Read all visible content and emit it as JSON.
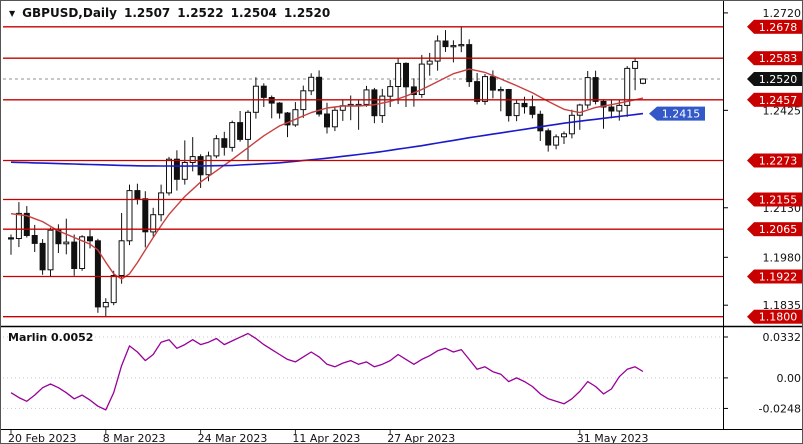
{
  "window": {
    "header": {
      "collapse_icon": "▼",
      "symbol": "GBPUSD,Daily",
      "open": "1.2507",
      "high": "1.2522",
      "low": "1.2504",
      "close": "1.2520"
    },
    "indicator_header": "Marlin 0.0052"
  },
  "colors": {
    "background": "#ffffff",
    "level_line": "#c80000",
    "candle_up_fill": "#ffffff",
    "candle_down_fill": "#111111",
    "candle_outline": "#111111",
    "ma_fast": "#c84040",
    "ma_slow": "#1a1acc",
    "marlin_line": "#990099",
    "label_level_bg": "#c80000",
    "label_price_bg": "#111111",
    "label_ma_bg": "#3358c8",
    "bid_line": "#909090",
    "axis_text": "#111111"
  },
  "chart_data": {
    "type": "candlestick",
    "title": "GBPUSD,Daily",
    "symbol": "GBPUSD",
    "timeframe": "Daily",
    "current_bar": {
      "open": 1.2507,
      "high": 1.2522,
      "low": 1.2504,
      "close": 1.252
    },
    "price_range": {
      "min": 1.1775,
      "max": 1.275
    },
    "levels": [
      1.2678,
      1.2583,
      1.2457,
      1.2273,
      1.2155,
      1.2065,
      1.1922,
      1.18
    ],
    "current_price": 1.252,
    "ma_callout": {
      "text": "1.2415",
      "value": 1.2415
    },
    "axis_labels": [
      {
        "text": "1.2720",
        "value": 1.272,
        "style": "plain"
      },
      {
        "text": "1.2678",
        "value": 1.2678,
        "style": "level"
      },
      {
        "text": "1.2583",
        "value": 1.2583,
        "style": "level"
      },
      {
        "text": "1.2520",
        "value": 1.252,
        "style": "price"
      },
      {
        "text": "1.2457",
        "value": 1.2457,
        "style": "level"
      },
      {
        "text": "1.2425",
        "value": 1.2425,
        "style": "plain"
      },
      {
        "text": "1.2273",
        "value": 1.2273,
        "style": "level"
      },
      {
        "text": "1.2155",
        "value": 1.2155,
        "style": "level"
      },
      {
        "text": "1.2130",
        "value": 1.213,
        "style": "plain"
      },
      {
        "text": "1.2065",
        "value": 1.2065,
        "style": "level"
      },
      {
        "text": "1.1980",
        "value": 1.198,
        "style": "plain"
      },
      {
        "text": "1.1922",
        "value": 1.1922,
        "style": "level"
      },
      {
        "text": "1.1835",
        "value": 1.1835,
        "style": "plain"
      },
      {
        "text": "1.1800",
        "value": 1.18,
        "style": "level"
      }
    ],
    "time_axis": [
      {
        "text": "20 Feb 2023",
        "index": 0
      },
      {
        "text": "8 Mar 2023",
        "index": 12
      },
      {
        "text": "24 Mar 2023",
        "index": 24
      },
      {
        "text": "11 Apr 2023",
        "index": 36
      },
      {
        "text": "27 Apr 2023",
        "index": 48
      },
      {
        "text": "31 May 2023",
        "index": 72
      }
    ],
    "candles": [
      [
        1.2039,
        1.2049,
        1.1988,
        1.2037
      ],
      [
        1.2037,
        1.2147,
        1.2011,
        1.2113
      ],
      [
        1.2113,
        1.2135,
        1.204,
        1.2046
      ],
      [
        1.2046,
        1.2078,
        1.1996,
        1.2022
      ],
      [
        1.2022,
        1.2035,
        1.1927,
        1.1942
      ],
      [
        1.1942,
        1.207,
        1.1923,
        1.2062
      ],
      [
        1.2062,
        1.208,
        1.1993,
        1.2021
      ],
      [
        1.2021,
        1.2097,
        1.1989,
        1.2026
      ],
      [
        1.2026,
        1.2049,
        1.1924,
        1.1946
      ],
      [
        1.1946,
        1.2047,
        1.1939,
        1.2042
      ],
      [
        1.2042,
        1.2063,
        1.2007,
        1.203
      ],
      [
        1.203,
        1.2036,
        1.1812,
        1.183
      ],
      [
        1.183,
        1.1856,
        1.1802,
        1.1843
      ],
      [
        1.1843,
        1.1939,
        1.1835,
        1.1925
      ],
      [
        1.1925,
        1.2114,
        1.19,
        1.203
      ],
      [
        1.203,
        1.22,
        1.2017,
        1.2182
      ],
      [
        1.2182,
        1.2203,
        1.214,
        1.2157
      ],
      [
        1.2157,
        1.218,
        1.201,
        1.2057
      ],
      [
        1.2057,
        1.213,
        1.2043,
        1.2109
      ],
      [
        1.2109,
        1.22,
        1.2089,
        1.2175
      ],
      [
        1.2175,
        1.2284,
        1.2167,
        1.2277
      ],
      [
        1.2277,
        1.2304,
        1.2182,
        1.2216
      ],
      [
        1.2216,
        1.2334,
        1.22,
        1.2267
      ],
      [
        1.2267,
        1.2344,
        1.224,
        1.2285
      ],
      [
        1.2285,
        1.2292,
        1.219,
        1.223
      ],
      [
        1.223,
        1.23,
        1.221,
        1.2287
      ],
      [
        1.2287,
        1.235,
        1.228,
        1.2339
      ],
      [
        1.2339,
        1.236,
        1.2288,
        1.2313
      ],
      [
        1.2313,
        1.2394,
        1.23,
        1.2388
      ],
      [
        1.2388,
        1.2423,
        1.233,
        1.2337
      ],
      [
        1.2337,
        1.2425,
        1.2275,
        1.2419
      ],
      [
        1.2419,
        1.2525,
        1.24,
        1.2498
      ],
      [
        1.2498,
        1.2507,
        1.2435,
        1.2464
      ],
      [
        1.2464,
        1.247,
        1.2401,
        1.2447
      ],
      [
        1.2447,
        1.245,
        1.24,
        1.2417
      ],
      [
        1.2417,
        1.242,
        1.2344,
        1.2381
      ],
      [
        1.2381,
        1.245,
        1.2375,
        1.2427
      ],
      [
        1.2427,
        1.25,
        1.2402,
        1.2484
      ],
      [
        1.2484,
        1.2537,
        1.2471,
        1.2525
      ],
      [
        1.2525,
        1.2546,
        1.2406,
        1.2414
      ],
      [
        1.2414,
        1.2448,
        1.2355,
        1.2375
      ],
      [
        1.2375,
        1.2436,
        1.2362,
        1.2425
      ],
      [
        1.2425,
        1.2455,
        1.2393,
        1.2439
      ],
      [
        1.2439,
        1.247,
        1.2395,
        1.2443
      ],
      [
        1.2443,
        1.2455,
        1.2366,
        1.2443
      ],
      [
        1.2443,
        1.2499,
        1.2436,
        1.2487
      ],
      [
        1.2487,
        1.2493,
        1.2386,
        1.2409
      ],
      [
        1.2409,
        1.249,
        1.2387,
        1.2468
      ],
      [
        1.2468,
        1.2517,
        1.2435,
        1.2497
      ],
      [
        1.2497,
        1.2584,
        1.2444,
        1.2567
      ],
      [
        1.2567,
        1.257,
        1.2435,
        1.2496
      ],
      [
        1.2496,
        1.2522,
        1.2436,
        1.2473
      ],
      [
        1.2473,
        1.2593,
        1.2463,
        1.2565
      ],
      [
        1.2565,
        1.2599,
        1.253,
        1.2574
      ],
      [
        1.2574,
        1.2652,
        1.2545,
        1.2635
      ],
      [
        1.2635,
        1.2668,
        1.2602,
        1.2618
      ],
      [
        1.2618,
        1.2637,
        1.257,
        1.2621
      ],
      [
        1.2621,
        1.2679,
        1.2601,
        1.2624
      ],
      [
        1.2624,
        1.264,
        1.2496,
        1.2512
      ],
      [
        1.2512,
        1.2538,
        1.2443,
        1.2452
      ],
      [
        1.2452,
        1.2535,
        1.2442,
        1.2527
      ],
      [
        1.2527,
        1.2546,
        1.2461,
        1.2486
      ],
      [
        1.2486,
        1.2497,
        1.2422,
        1.2488
      ],
      [
        1.2488,
        1.249,
        1.2391,
        1.2409
      ],
      [
        1.2409,
        1.2458,
        1.2392,
        1.2446
      ],
      [
        1.2446,
        1.2466,
        1.2415,
        1.2436
      ],
      [
        1.2436,
        1.247,
        1.2401,
        1.2413
      ],
      [
        1.2413,
        1.2424,
        1.2332,
        1.2363
      ],
      [
        1.2363,
        1.237,
        1.23,
        1.232
      ],
      [
        1.232,
        1.2352,
        1.2307,
        1.2345
      ],
      [
        1.2345,
        1.2361,
        1.2323,
        1.2354
      ],
      [
        1.2354,
        1.2427,
        1.234,
        1.241
      ],
      [
        1.241,
        1.2445,
        1.2366,
        1.2441
      ],
      [
        1.2441,
        1.2544,
        1.243,
        1.2524
      ],
      [
        1.2524,
        1.2545,
        1.2443,
        1.2452
      ],
      [
        1.2452,
        1.2458,
        1.2369,
        1.2435
      ],
      [
        1.2435,
        1.2457,
        1.2401,
        1.2423
      ],
      [
        1.2423,
        1.2455,
        1.2394,
        1.244
      ],
      [
        1.244,
        1.2559,
        1.2405,
        1.2552
      ],
      [
        1.2552,
        1.2582,
        1.2486,
        1.2573
      ],
      [
        1.2507,
        1.2522,
        1.2504,
        1.252
      ]
    ],
    "ma_slow_points": [
      [
        0,
        1.2268
      ],
      [
        10,
        1.2261
      ],
      [
        16,
        1.2257
      ],
      [
        22,
        1.2256
      ],
      [
        28,
        1.2258
      ],
      [
        34,
        1.2266
      ],
      [
        40,
        1.228
      ],
      [
        46,
        1.2297
      ],
      [
        52,
        1.2318
      ],
      [
        58,
        1.2342
      ],
      [
        64,
        1.2364
      ],
      [
        70,
        1.2386
      ],
      [
        75,
        1.2401
      ],
      [
        80,
        1.2415
      ]
    ],
    "ma_fast_points": [
      [
        0,
        1.2112
      ],
      [
        2,
        1.2106
      ],
      [
        4,
        1.2088
      ],
      [
        6,
        1.206
      ],
      [
        8,
        1.204
      ],
      [
        10,
        1.202
      ],
      [
        11,
        1.2002
      ],
      [
        12,
        1.1965
      ],
      [
        13,
        1.193
      ],
      [
        14,
        1.1914
      ],
      [
        15,
        1.193
      ],
      [
        16,
        1.1964
      ],
      [
        17,
        1.2002
      ],
      [
        18,
        1.204
      ],
      [
        19,
        1.2076
      ],
      [
        20,
        1.211
      ],
      [
        22,
        1.2164
      ],
      [
        24,
        1.2208
      ],
      [
        26,
        1.2242
      ],
      [
        28,
        1.2276
      ],
      [
        30,
        1.2312
      ],
      [
        32,
        1.2348
      ],
      [
        34,
        1.2378
      ],
      [
        36,
        1.2398
      ],
      [
        38,
        1.2418
      ],
      [
        40,
        1.2432
      ],
      [
        42,
        1.2438
      ],
      [
        44,
        1.2438
      ],
      [
        46,
        1.2442
      ],
      [
        48,
        1.2452
      ],
      [
        50,
        1.2468
      ],
      [
        52,
        1.2488
      ],
      [
        54,
        1.2512
      ],
      [
        56,
        1.2536
      ],
      [
        58,
        1.255
      ],
      [
        60,
        1.254
      ],
      [
        62,
        1.252
      ],
      [
        64,
        1.25
      ],
      [
        66,
        1.2478
      ],
      [
        68,
        1.2452
      ],
      [
        70,
        1.2428
      ],
      [
        72,
        1.2418
      ],
      [
        74,
        1.2434
      ],
      [
        76,
        1.2442
      ],
      [
        78,
        1.2452
      ],
      [
        80,
        1.2462
      ]
    ],
    "indicator": {
      "name": "Marlin",
      "value": 0.0052,
      "range": {
        "min": -0.0415,
        "max": 0.0405
      },
      "axis_labels": [
        {
          "text": "0.0332",
          "value": 0.0332
        },
        {
          "text": "0.00",
          "value": 0.0
        },
        {
          "text": "-0.0248",
          "value": -0.0248
        }
      ],
      "values": [
        -0.012,
        -0.016,
        -0.019,
        -0.014,
        -0.008,
        -0.005,
        -0.008,
        -0.012,
        -0.017,
        -0.014,
        -0.018,
        -0.023,
        -0.026,
        -0.012,
        0.01,
        0.026,
        0.021,
        0.014,
        0.019,
        0.029,
        0.031,
        0.024,
        0.027,
        0.031,
        0.027,
        0.029,
        0.032,
        0.027,
        0.03,
        0.033,
        0.036,
        0.032,
        0.027,
        0.023,
        0.019,
        0.015,
        0.013,
        0.017,
        0.021,
        0.017,
        0.011,
        0.009,
        0.012,
        0.014,
        0.011,
        0.013,
        0.009,
        0.011,
        0.014,
        0.019,
        0.015,
        0.011,
        0.015,
        0.018,
        0.022,
        0.024,
        0.021,
        0.023,
        0.015,
        0.007,
        0.009,
        0.005,
        0.003,
        -0.003,
        0.0,
        -0.003,
        -0.007,
        -0.013,
        -0.017,
        -0.019,
        -0.021,
        -0.017,
        -0.011,
        -0.003,
        -0.007,
        -0.013,
        -0.009,
        0.001,
        0.007,
        0.009,
        0.0052
      ]
    }
  }
}
